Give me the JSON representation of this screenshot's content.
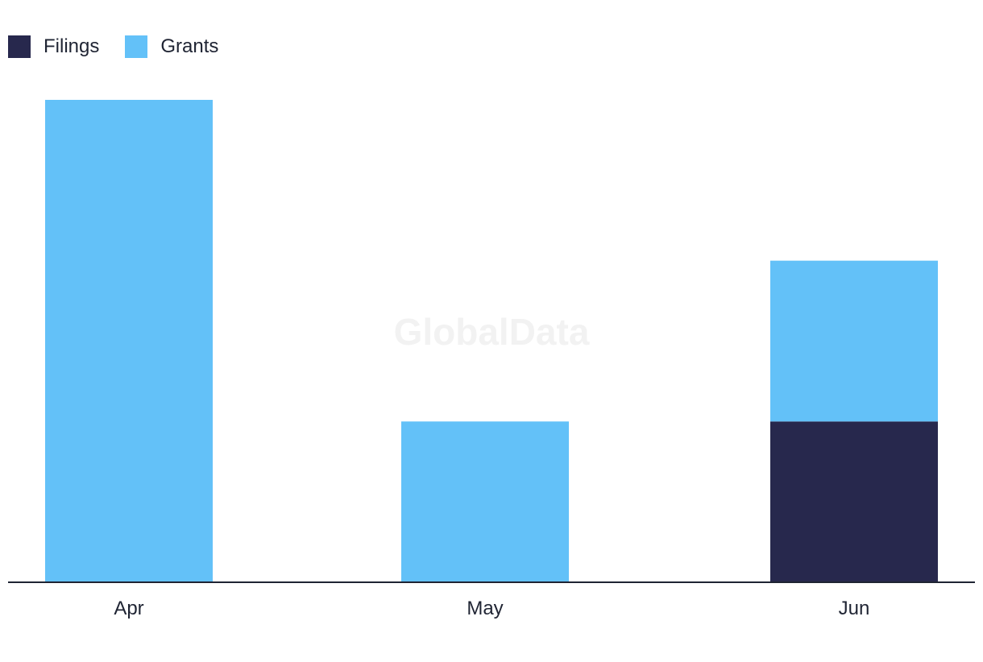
{
  "chart_data": {
    "type": "bar",
    "stacked": true,
    "categories": [
      "Apr",
      "May",
      "Jun"
    ],
    "series": [
      {
        "name": "Filings",
        "color": "#27284d",
        "values": [
          0,
          0,
          1
        ]
      },
      {
        "name": "Grants",
        "color": "#63c1f8",
        "values": [
          3,
          1,
          1
        ]
      }
    ],
    "ylim": [
      0,
      3
    ],
    "grid": false,
    "legend": "top-left",
    "watermark": "GlobalData"
  }
}
